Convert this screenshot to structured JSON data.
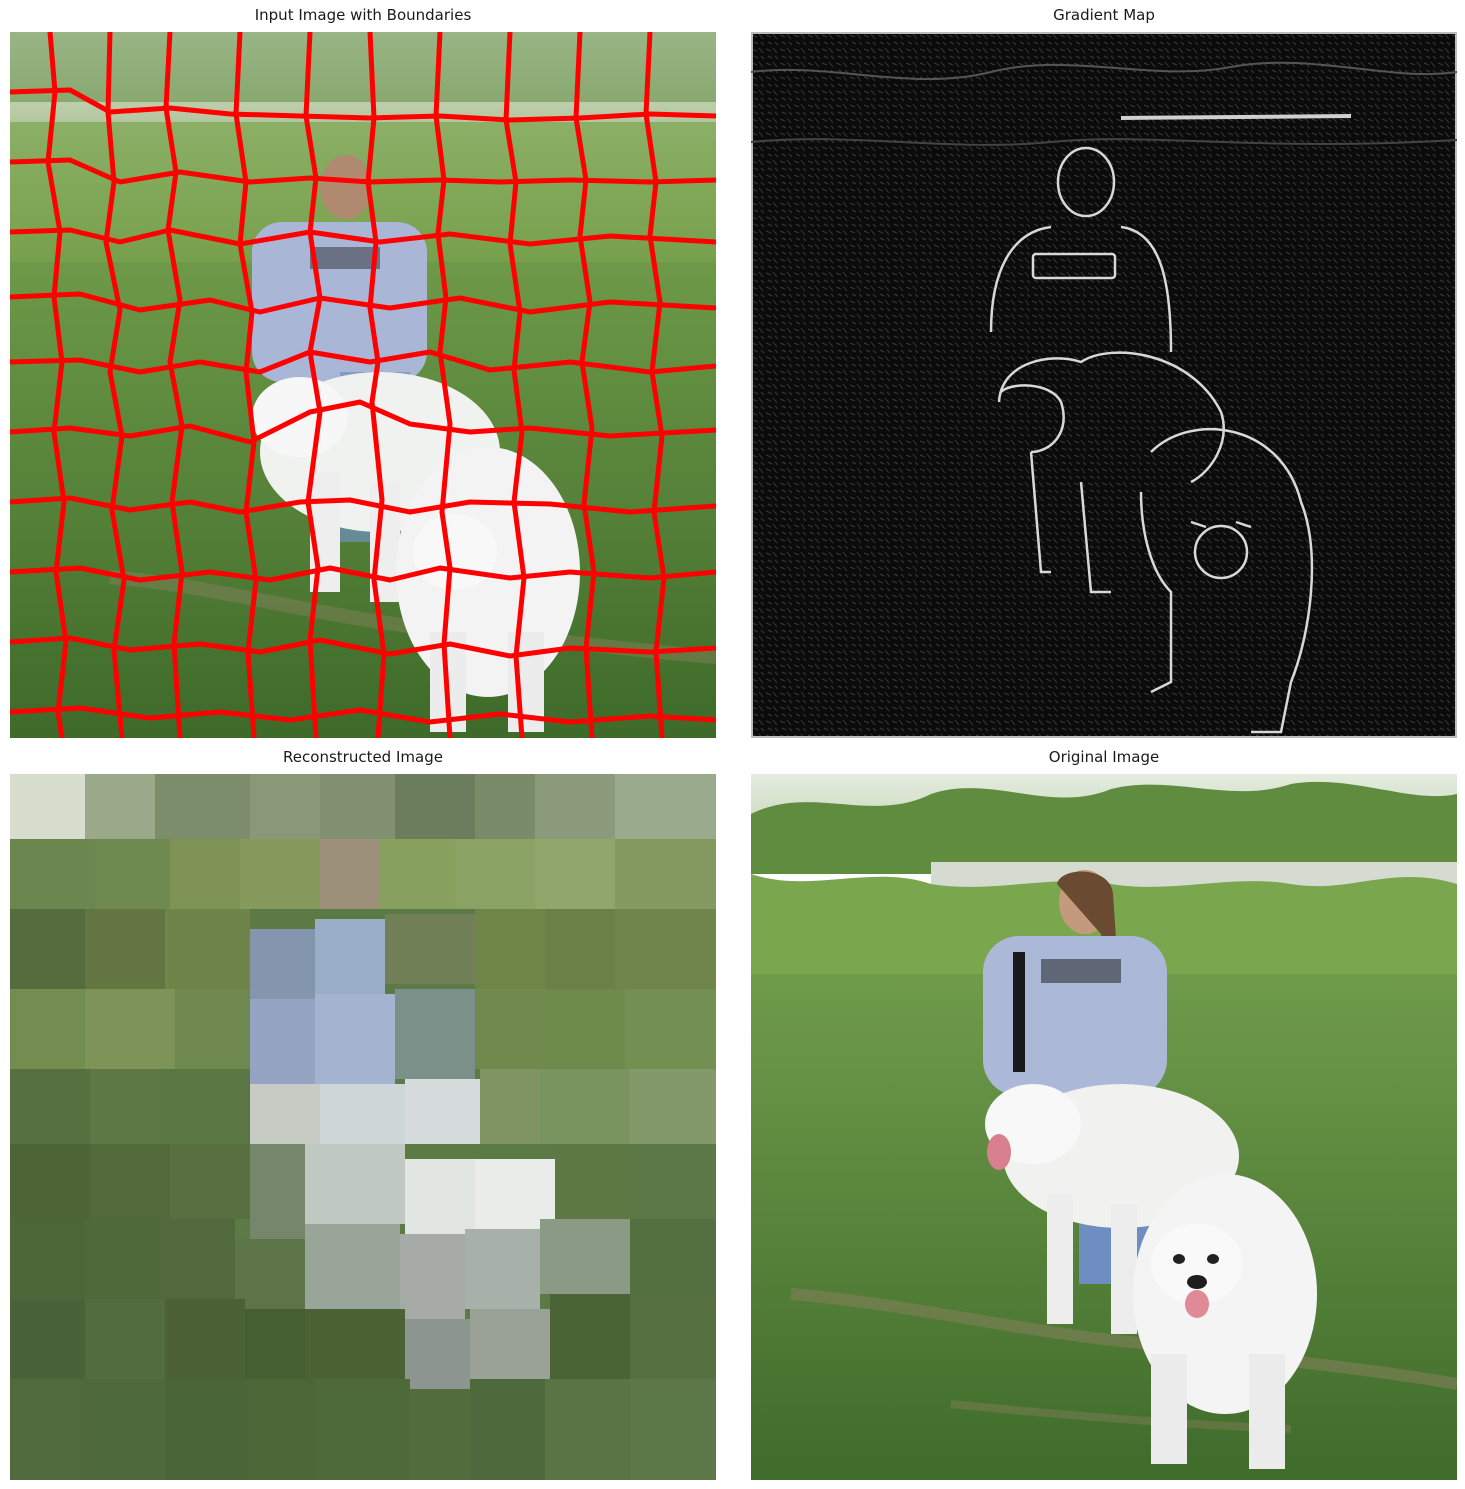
{
  "figure": {
    "panels": [
      {
        "title": "Input Image with Boundaries"
      },
      {
        "title": "Gradient Map"
      },
      {
        "title": "Reconstructed Image"
      },
      {
        "title": "Original Image"
      }
    ]
  },
  "colors": {
    "boundary": "#ff0000",
    "gradient_background": "#0a0a0a",
    "gradient_edge": "#d8d8d8",
    "grass": "#5f8a3f",
    "shirt": "#a9b6d6",
    "dog": "#f2f3f2"
  }
}
